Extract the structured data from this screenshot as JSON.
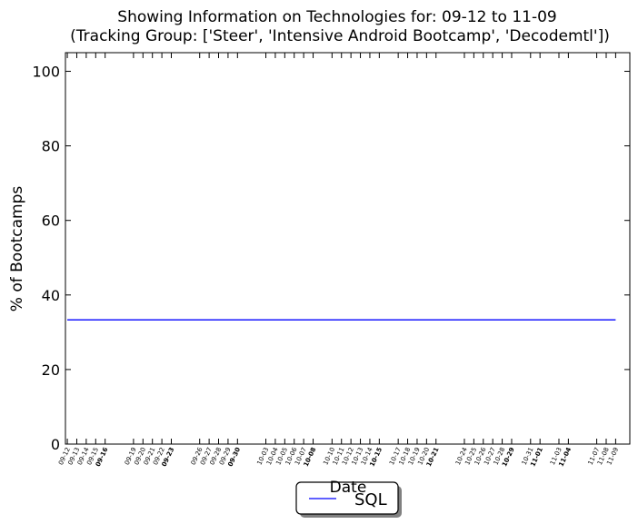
{
  "chart_data": {
    "type": "line",
    "title": "Showing Information on Technologies for: 09-12 to 11-09",
    "subtitle": "(Tracking Group: ['Steer', 'Intensive Android Bootcamp', 'Decodemtl'])",
    "xlabel": "Date",
    "ylabel": "% of Bootcamps",
    "ylim": [
      0,
      105
    ],
    "yticks": [
      0,
      20,
      40,
      60,
      80,
      100
    ],
    "x_start": "2015-09-12",
    "x_end": "2015-11-09",
    "xtick_labels": [
      "09-12",
      "09-13",
      "09-14",
      "09-15",
      "09-16",
      "09-19",
      "09-20",
      "09-21",
      "09-22",
      "09-23",
      "09-26",
      "09-27",
      "09-28",
      "09-29",
      "09-30",
      "10-03",
      "10-04",
      "10-05",
      "10-06",
      "10-07",
      "10-08",
      "10-10",
      "10-11",
      "10-12",
      "10-13",
      "10-14",
      "10-15",
      "10-17",
      "10-18",
      "10-19",
      "10-20",
      "10-21",
      "10-24",
      "10-25",
      "10-26",
      "10-27",
      "10-28",
      "10-29",
      "10-31",
      "11-01",
      "11-03",
      "11-04",
      "11-07",
      "11-08",
      "11-09"
    ],
    "bold_xtick_labels": [
      "09-16",
      "09-23",
      "09-30",
      "10-08",
      "10-15",
      "10-21",
      "10-29",
      "11-01",
      "11-04"
    ],
    "grid": false,
    "legend_position": "bottom-center",
    "series": [
      {
        "name": "SQL",
        "color": "#0000ff",
        "points": [
          {
            "x": "09-12",
            "y": 33.33
          },
          {
            "x": "11-09",
            "y": 33.33
          }
        ]
      }
    ]
  }
}
